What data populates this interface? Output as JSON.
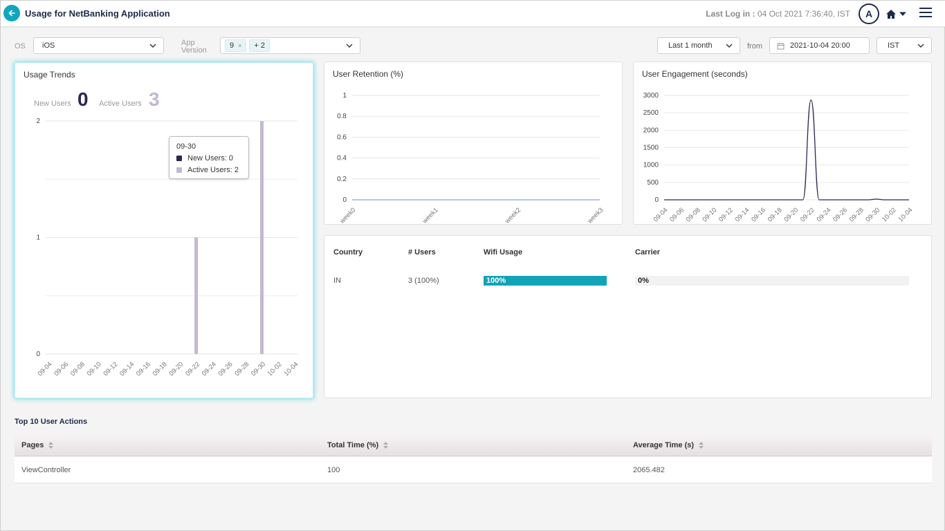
{
  "header": {
    "title": "Usage for NetBanking Application",
    "last_login_label": "Last Log in :",
    "last_login_value": "04 Oct 2021 7:36:40, IST",
    "avatar_initial": "A"
  },
  "filters": {
    "os_label": "OS",
    "os_value": "iOS",
    "app_version_label_line1": "App",
    "app_version_label_line2": "Version",
    "app_version_chips": [
      "9",
      "+ 2"
    ],
    "chip_remove": "×",
    "range_value": "Last 1 month",
    "from_label": "from",
    "from_date": "2021-10-04 20:00",
    "timezone": "IST"
  },
  "usage_trends": {
    "title": "Usage Trends",
    "new_users_label": "New Users",
    "new_users_value": "0",
    "active_users_label": "Active Users",
    "active_users_value": "3",
    "tooltip": {
      "date": "09-30",
      "new_users": "New Users: 0",
      "active_users": "Active Users: 2"
    }
  },
  "user_retention": {
    "title": "User Retention (%)"
  },
  "user_engagement": {
    "title": "User Engagement (seconds)"
  },
  "country_table": {
    "headers": {
      "country": "Country",
      "users": "# Users",
      "wifi": "Wifi Usage",
      "carrier": "Carrier"
    },
    "rows": [
      {
        "country": "IN",
        "users": "3 (100%)",
        "wifi": "100%",
        "carrier": "0%",
        "wifi_fraction": 1.0,
        "carrier_fraction": 0.0
      }
    ]
  },
  "top_actions": {
    "title": "Top 10 User Actions",
    "headers": {
      "pages": "Pages",
      "total_time": "Total Time (%)",
      "avg_time": "Average Time (s)"
    },
    "rows": [
      {
        "page": "ViewController",
        "total_time": "100",
        "avg_time": "2065.482"
      }
    ]
  },
  "colors": {
    "accent": "#11a6bd",
    "new_users": "#2c2653",
    "active_users": "#c2b8d2",
    "retention_line": "#9ab4e0",
    "engagement_line": "#2c2653"
  },
  "chart_data": [
    {
      "type": "bar",
      "title": "Usage Trends",
      "categories": [
        "09-04",
        "09-06",
        "09-08",
        "09-10",
        "09-12",
        "09-14",
        "09-16",
        "09-18",
        "09-20",
        "09-22",
        "09-24",
        "09-26",
        "09-28",
        "09-30",
        "10-02",
        "10-04"
      ],
      "series": [
        {
          "name": "New Users",
          "points": []
        },
        {
          "name": "Active Users",
          "points": [
            {
              "x": "09-22",
              "y": 1
            },
            {
              "x": "09-30",
              "y": 2
            }
          ]
        }
      ],
      "yticks": [
        0,
        1,
        2
      ],
      "ylim": [
        0,
        2
      ]
    },
    {
      "type": "line",
      "title": "User Retention (%)",
      "categories": [
        "week0",
        "week1",
        "week2",
        "week3"
      ],
      "values": [
        0,
        0,
        0,
        0
      ],
      "yticks": [
        0,
        0.2,
        0.4,
        0.6,
        0.8,
        1
      ],
      "ylim": [
        0,
        1
      ]
    },
    {
      "type": "line",
      "title": "User Engagement (seconds)",
      "categories": [
        "09-04",
        "09-06",
        "09-08",
        "09-10",
        "09-12",
        "09-14",
        "09-16",
        "09-18",
        "09-20",
        "09-22",
        "09-24",
        "09-26",
        "09-28",
        "09-30",
        "10-02",
        "10-04"
      ],
      "points": [
        {
          "x": "09-04",
          "y": 0
        },
        {
          "x": "09-20",
          "y": 0
        },
        {
          "x": "09-21",
          "y": 0
        },
        {
          "x": "09-22",
          "y": 2870
        },
        {
          "x": "09-23",
          "y": 0
        },
        {
          "x": "09-29",
          "y": 0
        },
        {
          "x": "09-30",
          "y": 20
        },
        {
          "x": "10-01",
          "y": 0
        },
        {
          "x": "10-04",
          "y": 0
        }
      ],
      "yticks": [
        0,
        500,
        1000,
        1500,
        2000,
        2500,
        3000
      ],
      "ylim": [
        0,
        3000
      ]
    }
  ]
}
